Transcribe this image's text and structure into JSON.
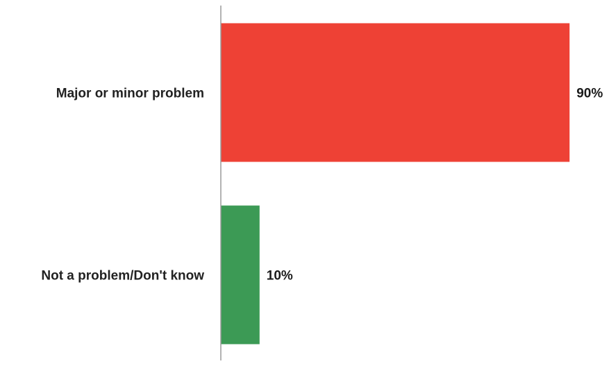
{
  "chart_data": {
    "type": "bar",
    "orientation": "horizontal",
    "categories": [
      "Major or minor problem",
      "Not a problem/Don't know"
    ],
    "values": [
      90,
      10
    ],
    "value_labels": [
      "90%",
      "10%"
    ],
    "bar_colors": [
      "#ee4135",
      "#3c9a55"
    ],
    "xlim": [
      0,
      100
    ],
    "unit": "%",
    "grid": false,
    "legend": "none"
  }
}
